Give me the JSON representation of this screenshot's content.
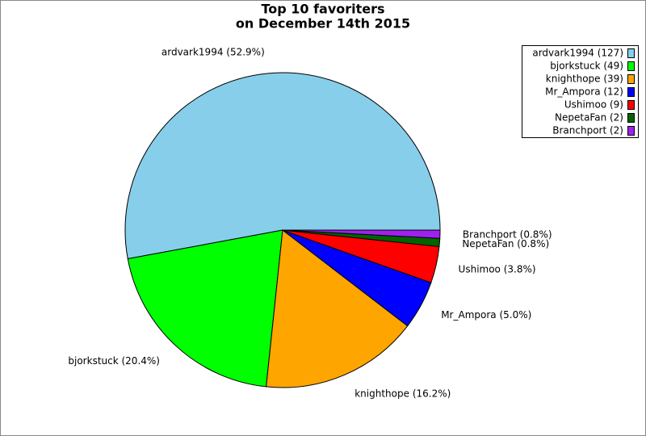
{
  "chart_data": {
    "type": "pie",
    "title": [
      "Top 10 favoriters",
      "on December 14th 2015"
    ],
    "values": [
      127,
      49,
      39,
      12,
      9,
      2,
      2
    ],
    "colors": [
      "#87ceeb",
      "#00ff00",
      "#ffa500",
      "#0000ff",
      "#ff0000",
      "#006400",
      "#a020f0"
    ],
    "slice_labels": [
      "ardvark1994 (52.9%)",
      "bjorkstuck (20.4%)",
      "knighthope (16.2%)",
      "Mr_Ampora (5.0%)",
      "Ushimoo (3.8%)",
      "NepetaFan (0.8%)",
      "Branchport (0.8%)"
    ],
    "legend_labels": [
      "ardvark1994 (127)",
      "bjorkstuck (49)",
      "knighthope (39)",
      "Mr_Ampora (12)",
      "Ushimoo (9)",
      "NepetaFan (2)",
      "Branchport (2)"
    ],
    "legend": "top-right"
  }
}
